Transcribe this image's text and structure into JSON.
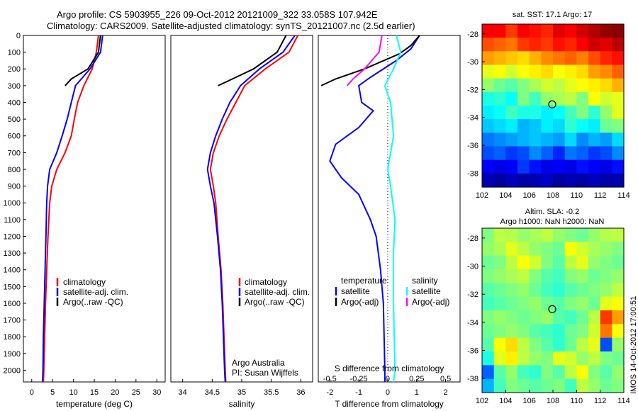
{
  "header": {
    "line1": "Argo profile: CS 5903955_226 09-Oct-2012 20121009_322 33.058S 107.942E",
    "line2": "Climatology: CARS2009. Satellite-adjusted climatology: synTS_20121007.nc (2.5d earlier)"
  },
  "footer": "IMOS 14-Oct-2012 17:00:51",
  "colors": {
    "climatology": "#ff0000",
    "satellite": "#0000ff",
    "argo": "#000000",
    "salinity_satellite": "#00ffff",
    "salinity_argo": "#ff00ff"
  },
  "chart_data": [
    {
      "type": "line",
      "xlabel": "temperature (deg C)",
      "ylabel": "",
      "xlim": [
        -2,
        32
      ],
      "ylim": [
        2070,
        0
      ],
      "xticks": [
        "0",
        "5",
        "10",
        "15",
        "20",
        "25",
        "30"
      ],
      "yticks": [
        "0",
        "100",
        "200",
        "300",
        "400",
        "500",
        "600",
        "700",
        "800",
        "900",
        "1000",
        "1100",
        "1200",
        "1300",
        "1400",
        "1500",
        "1600",
        "1700",
        "1800",
        "1900",
        "2000"
      ],
      "legend": [
        "climatology",
        "satellite-adj. clim.",
        "Argo(..raw -QC)"
      ],
      "series": [
        {
          "name": "climatology",
          "color": "#ff0000",
          "points": [
            [
              16,
              0
            ],
            [
              15.5,
              100
            ],
            [
              14.5,
              200
            ],
            [
              12.5,
              300
            ],
            [
              11,
              400
            ],
            [
              10.2,
              500
            ],
            [
              9.5,
              600
            ],
            [
              8,
              700
            ],
            [
              6,
              800
            ],
            [
              4.8,
              900
            ],
            [
              4.3,
              1000
            ],
            [
              3.9,
              1200
            ],
            [
              3.6,
              1400
            ],
            [
              3.3,
              1600
            ],
            [
              3.1,
              1800
            ],
            [
              2.9,
              2000
            ],
            [
              2.8,
              2070
            ]
          ]
        },
        {
          "name": "satellite-adj. clim.",
          "color": "#0000ff",
          "points": [
            [
              17,
              0
            ],
            [
              16.5,
              100
            ],
            [
              14,
              200
            ],
            [
              10.5,
              300
            ],
            [
              9.5,
              400
            ],
            [
              8.5,
              500
            ],
            [
              7.3,
              600
            ],
            [
              6,
              700
            ],
            [
              4.3,
              800
            ],
            [
              3.8,
              900
            ],
            [
              3.6,
              1000
            ],
            [
              3.4,
              1200
            ],
            [
              3.2,
              1400
            ],
            [
              3,
              1600
            ],
            [
              2.8,
              1800
            ],
            [
              2.7,
              2000
            ],
            [
              2.6,
              2070
            ]
          ]
        },
        {
          "name": "Argo(..raw -QC)",
          "color": "#000000",
          "points": [
            [
              16.5,
              0
            ],
            [
              16,
              100
            ],
            [
              13.5,
              200
            ],
            [
              9.5,
              260
            ],
            [
              8,
              300
            ]
          ]
        }
      ]
    },
    {
      "type": "line",
      "xlabel": "salinity",
      "xlim": [
        33.8,
        36.2
      ],
      "ylim": [
        2070,
        0
      ],
      "xticks": [
        "34",
        "34.5",
        "35",
        "35.5",
        "36"
      ],
      "legend": [
        "climatology",
        "satellite-adj. clim.",
        "Argo(..raw -QC)"
      ],
      "annotation": [
        "Argo Australia",
        "PI: Susan Wijffels"
      ],
      "series": [
        {
          "name": "climatology",
          "color": "#ff0000",
          "points": [
            [
              35.95,
              0
            ],
            [
              35.8,
              100
            ],
            [
              35.4,
              200
            ],
            [
              35.05,
              300
            ],
            [
              34.9,
              400
            ],
            [
              34.75,
              500
            ],
            [
              34.62,
              600
            ],
            [
              34.52,
              700
            ],
            [
              34.47,
              800
            ],
            [
              34.52,
              900
            ],
            [
              34.56,
              1000
            ],
            [
              34.6,
              1200
            ],
            [
              34.65,
              1400
            ],
            [
              34.68,
              1600
            ],
            [
              34.7,
              1800
            ],
            [
              34.72,
              2000
            ],
            [
              34.73,
              2070
            ]
          ]
        },
        {
          "name": "satellite-adj. clim.",
          "color": "#0000ff",
          "points": [
            [
              35.9,
              0
            ],
            [
              35.7,
              100
            ],
            [
              35.3,
              200
            ],
            [
              34.98,
              300
            ],
            [
              34.8,
              400
            ],
            [
              34.67,
              500
            ],
            [
              34.56,
              600
            ],
            [
              34.47,
              700
            ],
            [
              34.42,
              800
            ],
            [
              34.47,
              900
            ],
            [
              34.53,
              1000
            ],
            [
              34.59,
              1200
            ],
            [
              34.64,
              1400
            ],
            [
              34.67,
              1600
            ],
            [
              34.69,
              1800
            ],
            [
              34.71,
              2000
            ],
            [
              34.72,
              2070
            ]
          ]
        },
        {
          "name": "Argo(..raw -QC)",
          "color": "#000000",
          "points": [
            [
              35.75,
              0
            ],
            [
              35.6,
              100
            ],
            [
              35.2,
              200
            ],
            [
              34.9,
              250
            ],
            [
              34.6,
              300
            ]
          ]
        }
      ]
    },
    {
      "type": "line",
      "xlabel": "T difference from climatology",
      "xlabel2": "S difference from climatology",
      "xticks_T": [
        "-2",
        "-1",
        "0",
        "1",
        "2"
      ],
      "xticks_S": [
        "-0.5",
        "-0.25",
        "0",
        "0.25",
        "0.5"
      ],
      "xlim": [
        -2.4,
        2.5
      ],
      "ylim": [
        2070,
        0
      ],
      "legend_titles": [
        "temperature",
        "salinity"
      ],
      "legend": [
        "satellite",
        "Argo(-adj)",
        "satellite",
        "Argo(-adj)"
      ],
      "series": [
        {
          "name": "satellite",
          "color": "#0000ff",
          "points": [
            [
              1.1,
              0
            ],
            [
              0.8,
              80
            ],
            [
              0.3,
              150
            ],
            [
              -0.6,
              250
            ],
            [
              -1,
              300
            ],
            [
              -0.9,
              400
            ],
            [
              -0.5,
              450
            ],
            [
              -1,
              550
            ],
            [
              -1.8,
              650
            ],
            [
              -2,
              750
            ],
            [
              -1.6,
              850
            ],
            [
              -1,
              950
            ],
            [
              -0.6,
              1100
            ],
            [
              -0.4,
              1200
            ],
            [
              -0.25,
              1400
            ],
            [
              -0.15,
              1600
            ],
            [
              -0.1,
              2000
            ],
            [
              -0.1,
              2070
            ]
          ]
        },
        {
          "name": "Argo(-adj)",
          "color": "#000000",
          "points": [
            [
              1.1,
              0
            ],
            [
              0.8,
              60
            ],
            [
              0.4,
              110
            ],
            [
              -0.8,
              200
            ],
            [
              -1.8,
              260
            ],
            [
              -2.3,
              300
            ]
          ]
        },
        {
          "name": "satellite",
          "color": "#00ffff",
          "points": [
            [
              0.3,
              0
            ],
            [
              0.45,
              100
            ],
            [
              0.2,
              200
            ],
            [
              -0.1,
              300
            ],
            [
              0.1,
              400
            ],
            [
              0.2,
              600
            ],
            [
              0,
              800
            ],
            [
              0.1,
              900
            ],
            [
              0.25,
              1100
            ],
            [
              0.2,
              1300
            ],
            [
              0.2,
              1600
            ],
            [
              0.25,
              2000
            ],
            [
              0.2,
              2070
            ]
          ]
        },
        {
          "name": "Argo(-adj)",
          "color": "#ff00ff",
          "points": [
            [
              -0.2,
              0
            ],
            [
              -0.3,
              100
            ],
            [
              -0.8,
              200
            ],
            [
              -1.2,
              260
            ],
            [
              -1.4,
              300
            ]
          ]
        }
      ]
    },
    {
      "type": "heatmap",
      "title": "sat. SST: 17.1  Argo: 17",
      "xlim": [
        102,
        114
      ],
      "ylim": [
        -39,
        -27.3
      ],
      "xticks": [
        "102",
        "104",
        "106",
        "108",
        "110",
        "112",
        "114"
      ],
      "yticks": [
        "-28",
        "-30",
        "-32",
        "-34",
        "-36",
        "-38"
      ],
      "marker": [
        107.94,
        -33.06
      ],
      "rows": [
        [
          0.88,
          0.88,
          0.82,
          0.88,
          0.86,
          0.84,
          0.9,
          0.88,
          0.92,
          0.95,
          0.98,
          0.99
        ],
        [
          0.8,
          0.78,
          0.76,
          0.82,
          0.84,
          0.82,
          0.86,
          0.84,
          0.88,
          0.92,
          0.9,
          0.94
        ],
        [
          0.72,
          0.7,
          0.68,
          0.66,
          0.7,
          0.74,
          0.76,
          0.78,
          0.75,
          0.8,
          0.84,
          0.86
        ],
        [
          0.6,
          0.62,
          0.58,
          0.62,
          0.64,
          0.66,
          0.62,
          0.64,
          0.66,
          0.72,
          0.74,
          0.78
        ],
        [
          0.52,
          0.48,
          0.46,
          0.5,
          0.54,
          0.58,
          0.56,
          0.6,
          0.62,
          0.64,
          0.66,
          0.7
        ],
        [
          0.4,
          0.42,
          0.38,
          0.5,
          0.44,
          0.52,
          0.54,
          0.56,
          0.5,
          0.62,
          0.58,
          0.6
        ],
        [
          0.36,
          0.38,
          0.44,
          0.4,
          0.4,
          0.36,
          0.38,
          0.44,
          0.5,
          0.42,
          0.52,
          0.6
        ],
        [
          0.32,
          0.34,
          0.36,
          0.3,
          0.32,
          0.36,
          0.34,
          0.42,
          0.38,
          0.36,
          0.48,
          0.5
        ],
        [
          0.24,
          0.26,
          0.28,
          0.3,
          0.32,
          0.3,
          0.28,
          0.34,
          0.26,
          0.3,
          0.28,
          0.34
        ],
        [
          0.2,
          0.22,
          0.18,
          0.2,
          0.26,
          0.22,
          0.16,
          0.24,
          0.22,
          0.18,
          0.2,
          0.26
        ],
        [
          0.12,
          0.1,
          0.12,
          0.18,
          0.14,
          0.1,
          0.12,
          0.1,
          0.14,
          0.12,
          0.1,
          0.14
        ],
        [
          0.05,
          0.03,
          0.06,
          0.04,
          0.05,
          0.07,
          0.03,
          0.05,
          0.04,
          0.06,
          0.04,
          0.05
        ]
      ]
    },
    {
      "type": "heatmap",
      "title": "Altim. SLA: -0.2",
      "subtitle": "Argo h1000: NaN  h2000: NaN",
      "xlim": [
        102,
        114
      ],
      "ylim": [
        -39,
        -27.3
      ],
      "xticks": [
        "102",
        "104",
        "106",
        "108",
        "110",
        "112",
        "114"
      ],
      "yticks": [
        "-28",
        "-30",
        "-32",
        "-34",
        "-36",
        "-38"
      ],
      "marker": [
        107.94,
        -33.06
      ],
      "rows": [
        [
          0.5,
          0.56,
          0.55,
          0.52,
          0.54,
          0.56,
          0.52,
          0.5,
          0.48,
          0.52,
          0.55,
          0.56
        ],
        [
          0.52,
          0.54,
          0.6,
          0.56,
          0.52,
          0.5,
          0.48,
          0.62,
          0.58,
          0.54,
          0.52,
          0.5
        ],
        [
          0.48,
          0.5,
          0.56,
          0.62,
          0.58,
          0.5,
          0.46,
          0.56,
          0.6,
          0.52,
          0.5,
          0.48
        ],
        [
          0.5,
          0.52,
          0.54,
          0.56,
          0.5,
          0.46,
          0.44,
          0.5,
          0.52,
          0.48,
          0.5,
          0.52
        ],
        [
          0.46,
          0.48,
          0.5,
          0.52,
          0.48,
          0.44,
          0.42,
          0.46,
          0.48,
          0.5,
          0.52,
          0.56
        ],
        [
          0.44,
          0.46,
          0.48,
          0.5,
          0.52,
          0.48,
          0.46,
          0.5,
          0.52,
          0.48,
          0.6,
          0.62
        ],
        [
          0.5,
          0.52,
          0.5,
          0.48,
          0.5,
          0.52,
          0.46,
          0.44,
          0.48,
          0.56,
          0.82,
          0.72
        ],
        [
          0.48,
          0.5,
          0.52,
          0.5,
          0.46,
          0.44,
          0.42,
          0.48,
          0.5,
          0.58,
          0.76,
          0.62
        ],
        [
          0.46,
          0.62,
          0.66,
          0.56,
          0.5,
          0.46,
          0.42,
          0.48,
          0.56,
          0.6,
          0.2,
          0.52
        ],
        [
          0.4,
          0.6,
          0.64,
          0.56,
          0.52,
          0.5,
          0.6,
          0.58,
          0.52,
          0.56,
          0.5,
          0.48
        ],
        [
          0.22,
          0.46,
          0.52,
          0.44,
          0.42,
          0.5,
          0.46,
          0.56,
          0.62,
          0.5,
          0.46,
          0.52
        ],
        [
          0.3,
          0.44,
          0.5,
          0.48,
          0.46,
          0.48,
          0.5,
          0.44,
          0.56,
          0.52,
          0.48,
          0.5
        ]
      ]
    }
  ]
}
